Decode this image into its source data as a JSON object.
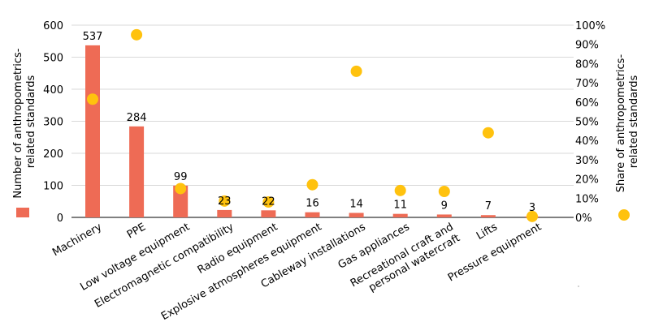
{
  "colors": {
    "bar": "#ee6b55",
    "dot": "#ffc20e",
    "grid": "#d9d9d9",
    "axis": "#000000"
  },
  "chart_data": {
    "type": "bar",
    "title": "",
    "categories": [
      [
        "Machinery"
      ],
      [
        "PPE"
      ],
      [
        "Low voltage equipment"
      ],
      [
        "Electromagnetic compatibility"
      ],
      [
        "Radio equipment"
      ],
      [
        "Explosive atmospheres equipment"
      ],
      [
        "Cableway installations"
      ],
      [
        "Gas appliances"
      ],
      [
        "Recreational craft and",
        "personal watercraft"
      ],
      [
        "Lifts"
      ],
      [
        "Pressure equipment"
      ]
    ],
    "series": [
      {
        "type": "bar",
        "axis": "left",
        "values": [
          537,
          284,
          99,
          23,
          22,
          16,
          14,
          11,
          9,
          7,
          3
        ],
        "data_labels": [
          "537",
          "284",
          "99",
          "23",
          "22",
          "16",
          "14",
          "11",
          "9",
          "7",
          "3"
        ]
      },
      {
        "type": "scatter",
        "axis": "right",
        "values": [
          61.5,
          95,
          15,
          8.5,
          8,
          17,
          76,
          14,
          13.5,
          44,
          0.5
        ]
      }
    ],
    "y_left": {
      "label_lines": [
        "Number of anthropometrics-",
        "related standards"
      ],
      "ylim": [
        0,
        600
      ],
      "ticks": [
        0,
        100,
        200,
        300,
        400,
        500,
        600
      ],
      "tick_labels": [
        "0",
        "100",
        "200",
        "300",
        "400",
        "500",
        "600"
      ]
    },
    "y_right": {
      "label_lines": [
        "Share of anthropometrics-",
        "related standards"
      ],
      "ylim": [
        0,
        100
      ],
      "ticks": [
        0,
        10,
        20,
        30,
        40,
        50,
        60,
        70,
        80,
        90,
        100
      ],
      "tick_labels": [
        "0%",
        "10%",
        "20%",
        "30%",
        "40%",
        "50%",
        "60%",
        "70%",
        "80%",
        "90%",
        "100%"
      ]
    },
    "grid": true,
    "legend": "left-and-right-axis-markers"
  }
}
